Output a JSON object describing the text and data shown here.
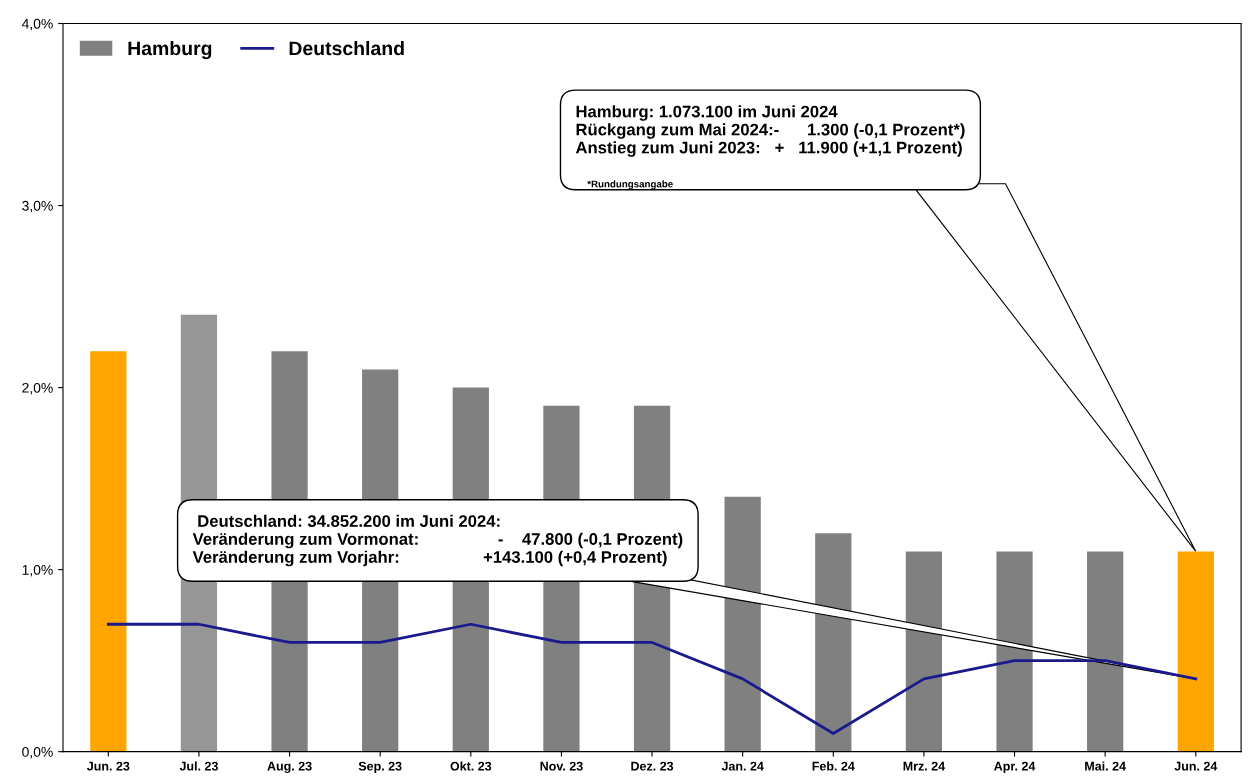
{
  "chart_data": {
    "type": "bar",
    "categories": [
      "Jun. 23",
      "Jul. 23",
      "Aug. 23",
      "Sep. 23",
      "Okt. 23",
      "Nov. 23",
      "Dez. 23",
      "Jan. 24",
      "Feb. 24",
      "Mrz. 24",
      "Apr. 24",
      "Mai. 24",
      "Jun. 24"
    ],
    "series": [
      {
        "name": "Hamburg",
        "color": "#808080",
        "colors": [
          "#ffa500",
          "#969696",
          "#808080",
          "#808080",
          "#808080",
          "#808080",
          "#808080",
          "#808080",
          "#808080",
          "#808080",
          "#808080",
          "#808080",
          "#ffa500"
        ],
        "values": [
          2.2,
          2.4,
          2.2,
          2.1,
          2.0,
          1.9,
          1.9,
          1.4,
          1.2,
          1.1,
          1.1,
          1.1,
          1.1
        ]
      },
      {
        "name": "Deutschland",
        "type": "line",
        "color": "#1a1a8c",
        "values": [
          0.7,
          0.7,
          0.6,
          0.6,
          0.7,
          0.6,
          0.6,
          0.4,
          0.1,
          0.4,
          0.5,
          0.5,
          0.4
        ]
      }
    ],
    "ylim": [
      0,
      4
    ],
    "yticks": [
      {
        "value": 0,
        "label": "0,0%"
      },
      {
        "value": 1,
        "label": "1,0%"
      },
      {
        "value": 2,
        "label": "2,0%"
      },
      {
        "value": 3,
        "label": "3,0%"
      },
      {
        "value": 4,
        "label": "4,0%"
      }
    ],
    "annotations": [
      "Hamburg: 1.073.100 im Juni 2024\nRückgang zum Mai 2024:-      1.300 (-0,1 Prozent*)\nAnstieg zum Juni 2023:   +   11.900 (+1,1 Prozent)\n ",
      "*Rundungsangabe",
      " Deutschland: 34.852.200 im Juni 2024:\nVeränderung zum Vormonat:                 -    47.800 (-0,1 Prozent)\nVeränderung zum Vorjahr:                  +143.100 (+0,4 Prozent)"
    ],
    "legend": "top left",
    "grid": false,
    "marker": "none",
    "line_style": "solid"
  }
}
